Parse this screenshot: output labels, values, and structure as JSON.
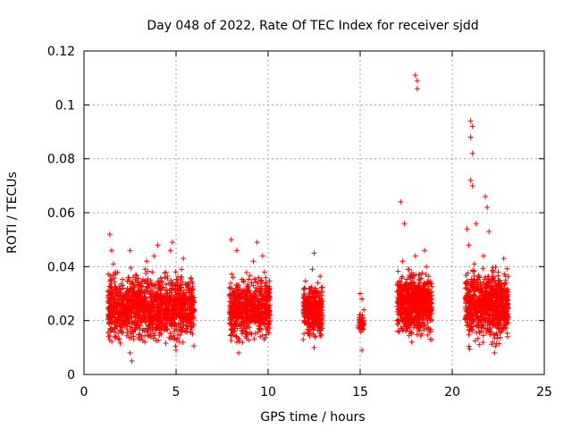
{
  "chart_data": {
    "type": "scatter",
    "title": "Day 048 of 2022, Rate Of TEC Index for receiver sjdd",
    "xlabel": "GPS time / hours",
    "ylabel": "ROTI / TECUs",
    "xlim": [
      0,
      25
    ],
    "ylim": [
      0,
      0.12
    ],
    "xticks": [
      0,
      5,
      10,
      15,
      20,
      25
    ],
    "xtick_labels": [
      "0",
      "5",
      "10",
      "15",
      "20",
      "25"
    ],
    "yticks": [
      0,
      0.02,
      0.04,
      0.06,
      0.08,
      0.1,
      0.12
    ],
    "ytick_labels": [
      "0",
      "0.02",
      "0.04",
      "0.06",
      "0.08",
      "0.1",
      "0.12"
    ],
    "grid": true,
    "marker": "+",
    "marker_color": "#ff0000",
    "series": [
      {
        "name": "sjdd",
        "color": "#ff0000",
        "points": [
          [
            1.3,
            0.031
          ],
          [
            1.4,
            0.052
          ],
          [
            1.5,
            0.046
          ],
          [
            1.6,
            0.041
          ],
          [
            1.7,
            0.038
          ],
          [
            1.8,
            0.026
          ],
          [
            1.9,
            0.022
          ],
          [
            2.0,
            0.018
          ],
          [
            1.5,
            0.019
          ],
          [
            1.7,
            0.014
          ],
          [
            2.1,
            0.033
          ],
          [
            2.3,
            0.028
          ],
          [
            2.4,
            0.036
          ],
          [
            2.5,
            0.046
          ],
          [
            2.5,
            0.008
          ],
          [
            2.6,
            0.005
          ],
          [
            2.7,
            0.013
          ],
          [
            2.8,
            0.021
          ],
          [
            2.9,
            0.024
          ],
          [
            3.0,
            0.017
          ],
          [
            3.1,
            0.031
          ],
          [
            3.2,
            0.026
          ],
          [
            3.3,
            0.012
          ],
          [
            3.4,
            0.042
          ],
          [
            3.5,
            0.022
          ],
          [
            3.6,
            0.018
          ],
          [
            3.7,
            0.038
          ],
          [
            3.8,
            0.044
          ],
          [
            3.9,
            0.028
          ],
          [
            4.0,
            0.048
          ],
          [
            4.1,
            0.032
          ],
          [
            4.2,
            0.015
          ],
          [
            4.3,
            0.024
          ],
          [
            4.4,
            0.036
          ],
          [
            4.5,
            0.019
          ],
          [
            4.6,
            0.028
          ],
          [
            4.7,
            0.046
          ],
          [
            4.8,
            0.049
          ],
          [
            4.9,
            0.013
          ],
          [
            5.0,
            0.009
          ],
          [
            5.1,
            0.031
          ],
          [
            5.2,
            0.022
          ],
          [
            5.3,
            0.039
          ],
          [
            5.4,
            0.043
          ],
          [
            5.5,
            0.025
          ],
          [
            5.6,
            0.018
          ],
          [
            5.7,
            0.032
          ],
          [
            5.8,
            0.026
          ],
          [
            5.9,
            0.015
          ],
          [
            1.6,
            0.025
          ],
          [
            2.2,
            0.02
          ],
          [
            3.0,
            0.023
          ],
          [
            3.8,
            0.021
          ],
          [
            4.5,
            0.024
          ],
          [
            5.3,
            0.02
          ],
          [
            1.9,
            0.029
          ],
          [
            2.7,
            0.027
          ],
          [
            3.5,
            0.026
          ],
          [
            4.2,
            0.028
          ],
          [
            5.0,
            0.027
          ],
          [
            8.0,
            0.05
          ],
          [
            8.1,
            0.036
          ],
          [
            8.2,
            0.022
          ],
          [
            8.3,
            0.012
          ],
          [
            8.4,
            0.008
          ],
          [
            8.5,
            0.018
          ],
          [
            8.6,
            0.028
          ],
          [
            8.7,
            0.024
          ],
          [
            8.8,
            0.015
          ],
          [
            8.9,
            0.031
          ],
          [
            9.0,
            0.02
          ],
          [
            9.1,
            0.034
          ],
          [
            9.2,
            0.042
          ],
          [
            9.3,
            0.025
          ],
          [
            9.4,
            0.049
          ],
          [
            9.5,
            0.017
          ],
          [
            9.6,
            0.03
          ],
          [
            9.7,
            0.044
          ],
          [
            9.8,
            0.038
          ],
          [
            9.9,
            0.023
          ],
          [
            10.0,
            0.032
          ],
          [
            8.3,
            0.046
          ],
          [
            8.6,
            0.021
          ],
          [
            9.0,
            0.026
          ],
          [
            9.5,
            0.022
          ],
          [
            9.8,
            0.019
          ],
          [
            12.0,
            0.032
          ],
          [
            12.1,
            0.024
          ],
          [
            12.2,
            0.018
          ],
          [
            12.3,
            0.028
          ],
          [
            12.4,
            0.039
          ],
          [
            12.5,
            0.045
          ],
          [
            12.5,
            0.01
          ],
          [
            12.6,
            0.022
          ],
          [
            12.7,
            0.034
          ],
          [
            12.8,
            0.019
          ],
          [
            12.9,
            0.026
          ],
          [
            12.2,
            0.021
          ],
          [
            12.6,
            0.027
          ],
          [
            15.0,
            0.03
          ],
          [
            15.0,
            0.021
          ],
          [
            15.1,
            0.017
          ],
          [
            15.1,
            0.009
          ],
          [
            15.2,
            0.024
          ],
          [
            15.1,
            0.028
          ],
          [
            17.1,
            0.028
          ],
          [
            17.2,
            0.064
          ],
          [
            17.3,
            0.042
          ],
          [
            17.4,
            0.056
          ],
          [
            17.5,
            0.033
          ],
          [
            17.6,
            0.022
          ],
          [
            17.7,
            0.016
          ],
          [
            17.8,
            0.012
          ],
          [
            17.9,
            0.037
          ],
          [
            18.0,
            0.044
          ],
          [
            18.0,
            0.111
          ],
          [
            18.1,
            0.109
          ],
          [
            18.1,
            0.106
          ],
          [
            18.2,
            0.031
          ],
          [
            18.3,
            0.024
          ],
          [
            18.4,
            0.018
          ],
          [
            18.5,
            0.046
          ],
          [
            18.6,
            0.04
          ],
          [
            18.7,
            0.028
          ],
          [
            18.8,
            0.013
          ],
          [
            17.6,
            0.027
          ],
          [
            18.2,
            0.025
          ],
          [
            18.6,
            0.022
          ],
          [
            20.8,
            0.054
          ],
          [
            20.9,
            0.048
          ],
          [
            21.0,
            0.094
          ],
          [
            21.0,
            0.088
          ],
          [
            21.1,
            0.092
          ],
          [
            21.1,
            0.082
          ],
          [
            21.0,
            0.072
          ],
          [
            21.1,
            0.07
          ],
          [
            21.2,
            0.041
          ],
          [
            21.3,
            0.056
          ],
          [
            21.4,
            0.035
          ],
          [
            21.5,
            0.024
          ],
          [
            21.6,
            0.018
          ],
          [
            21.7,
            0.044
          ],
          [
            21.8,
            0.066
          ],
          [
            21.9,
            0.062
          ],
          [
            22.0,
            0.053
          ],
          [
            22.1,
            0.03
          ],
          [
            22.2,
            0.012
          ],
          [
            22.3,
            0.008
          ],
          [
            22.4,
            0.022
          ],
          [
            22.5,
            0.038
          ],
          [
            22.6,
            0.02
          ],
          [
            22.7,
            0.031
          ],
          [
            22.8,
            0.043
          ],
          [
            22.9,
            0.035
          ],
          [
            23.0,
            0.014
          ],
          [
            21.3,
            0.025
          ],
          [
            21.8,
            0.027
          ],
          [
            22.3,
            0.026
          ],
          [
            22.8,
            0.024
          ]
        ],
        "clusters": [
          {
            "x": [
              1.3,
              6.0
            ],
            "y": [
              0.01,
              0.04
            ],
            "count": 1300
          },
          {
            "x": [
              7.9,
              10.1
            ],
            "y": [
              0.01,
              0.038
            ],
            "count": 600
          },
          {
            "x": [
              11.9,
              12.95
            ],
            "y": [
              0.011,
              0.036
            ],
            "count": 320
          },
          {
            "x": [
              14.9,
              15.2
            ],
            "y": [
              0.014,
              0.024
            ],
            "count": 40
          },
          {
            "x": [
              17.0,
              18.9
            ],
            "y": [
              0.012,
              0.04
            ],
            "count": 650
          },
          {
            "x": [
              20.7,
              23.05
            ],
            "y": [
              0.01,
              0.042
            ],
            "count": 750
          }
        ]
      }
    ]
  }
}
